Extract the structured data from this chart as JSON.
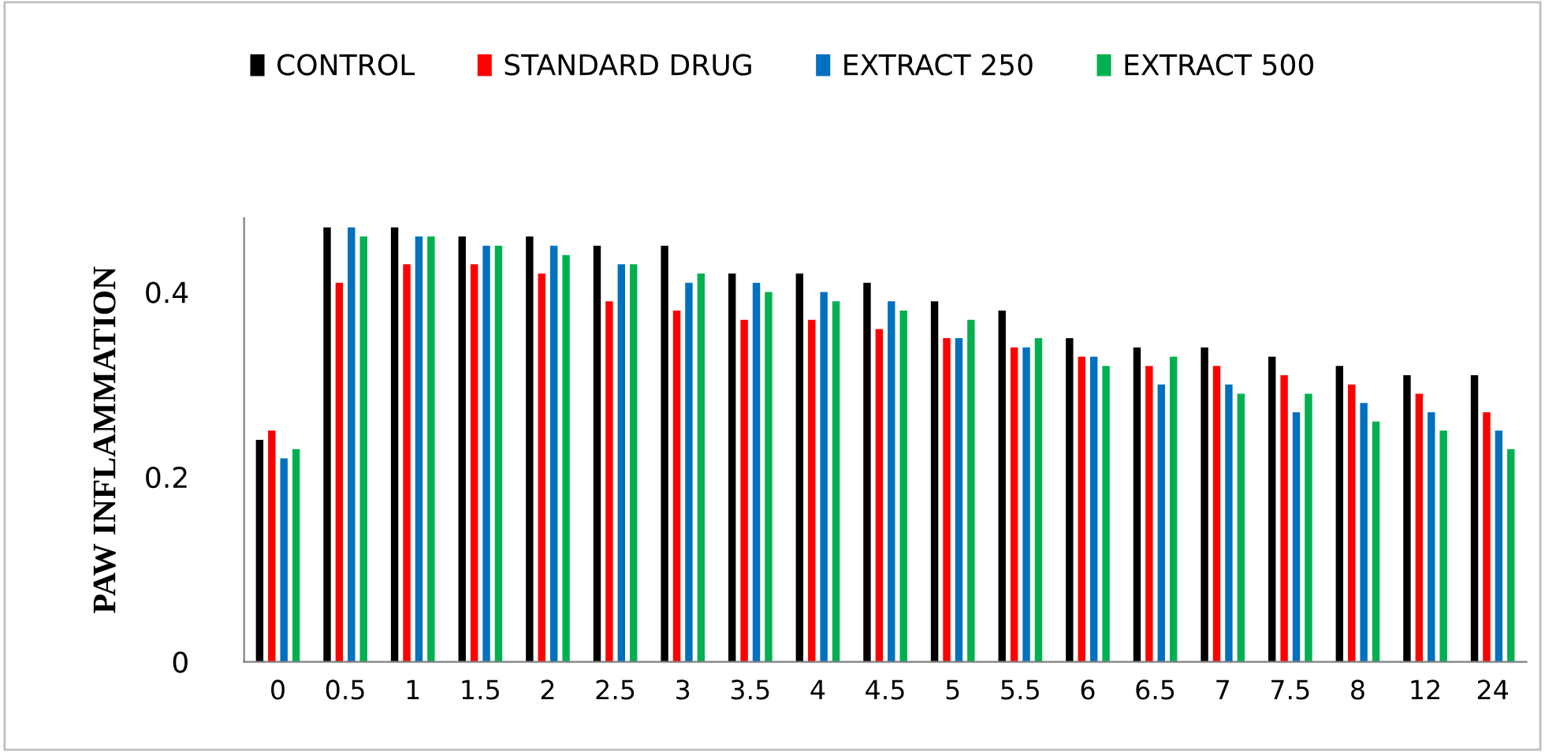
{
  "chart_data": {
    "type": "bar",
    "ylabel": "PAW INFLAMMATION",
    "categories": [
      "0",
      "0.5",
      "1",
      "1.5",
      "2",
      "2.5",
      "3",
      "3.5",
      "4",
      "4.5",
      "5",
      "5.5",
      "6",
      "6.5",
      "7",
      "7.5",
      "8",
      "12",
      "24"
    ],
    "series": [
      {
        "name": "CONTROL",
        "color": "#000000",
        "values": [
          0.24,
          0.47,
          0.47,
          0.46,
          0.46,
          0.45,
          0.45,
          0.42,
          0.42,
          0.41,
          0.39,
          0.38,
          0.35,
          0.34,
          0.34,
          0.33,
          0.32,
          0.31,
          0.31
        ]
      },
      {
        "name": "STANDARD DRUG",
        "color": "#ff0000",
        "values": [
          0.25,
          0.41,
          0.43,
          0.43,
          0.42,
          0.39,
          0.38,
          0.37,
          0.37,
          0.36,
          0.35,
          0.34,
          0.33,
          0.32,
          0.32,
          0.31,
          0.3,
          0.29,
          0.27
        ]
      },
      {
        "name": "EXTRACT 250",
        "color": "#0070c0",
        "values": [
          0.22,
          0.47,
          0.46,
          0.45,
          0.45,
          0.43,
          0.41,
          0.41,
          0.4,
          0.39,
          0.35,
          0.34,
          0.33,
          0.3,
          0.3,
          0.27,
          0.28,
          0.27,
          0.25
        ]
      },
      {
        "name": "EXTRACT 500",
        "color": "#00b050",
        "values": [
          0.23,
          0.46,
          0.46,
          0.45,
          0.44,
          0.43,
          0.42,
          0.4,
          0.39,
          0.38,
          0.37,
          0.35,
          0.32,
          0.33,
          0.29,
          0.29,
          0.26,
          0.25,
          0.23
        ]
      }
    ],
    "ylim": [
      0,
      0.48
    ],
    "yticks": [
      0,
      0.2,
      0.4
    ],
    "grid": false,
    "legend": "top"
  }
}
